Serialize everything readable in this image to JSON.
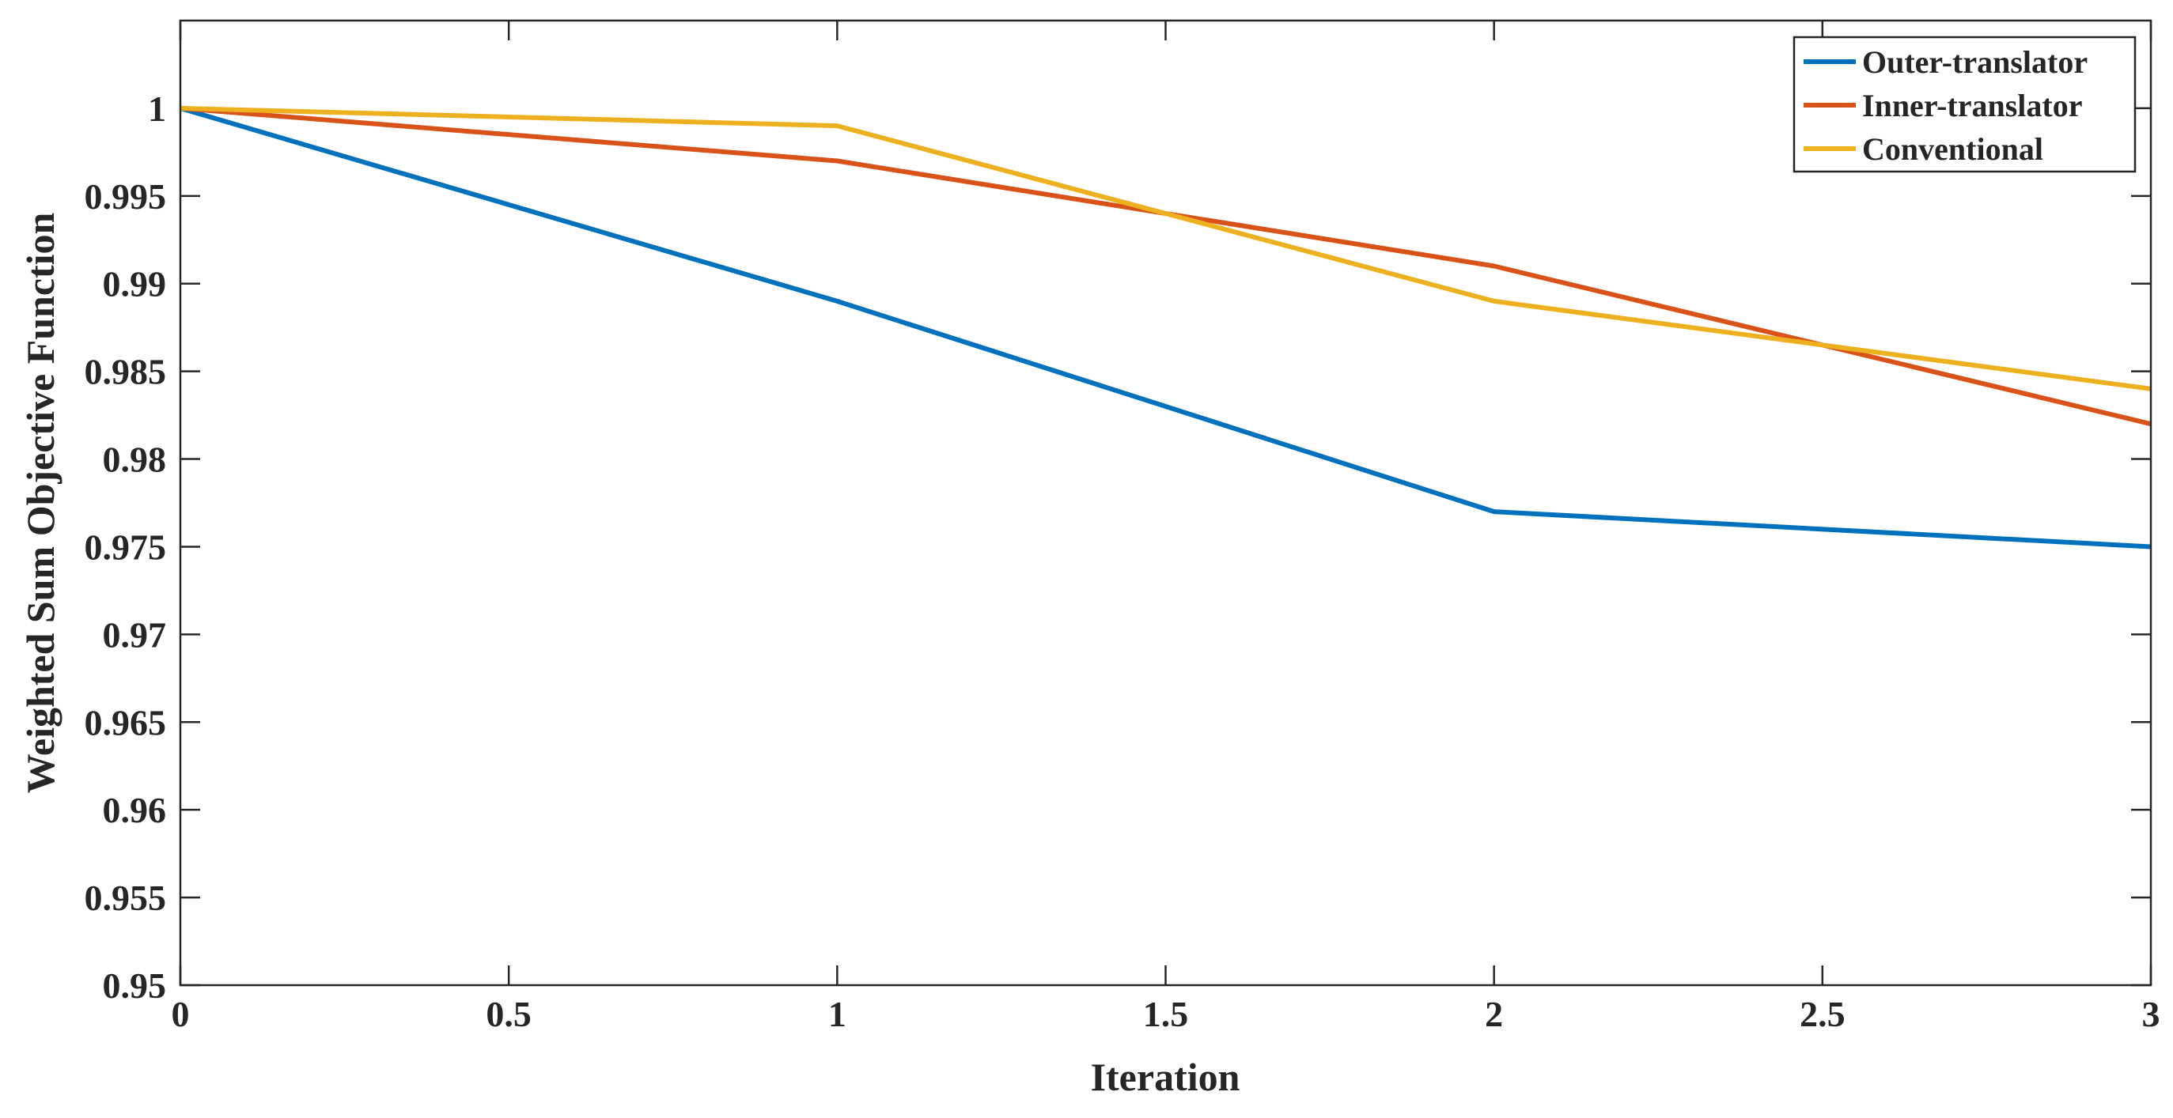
{
  "chart_data": {
    "type": "line",
    "xlabel": "Iteration",
    "ylabel": "Weighted Sum Objective Function",
    "xlim": [
      0,
      3
    ],
    "ylim": [
      0.95,
      1.005
    ],
    "x_ticks": [
      0,
      0.5,
      1,
      1.5,
      2,
      2.5,
      3
    ],
    "x_tick_labels": [
      "0",
      "0.5",
      "1",
      "1.5",
      "2",
      "2.5",
      "3"
    ],
    "y_ticks": [
      0.95,
      0.955,
      0.96,
      0.965,
      0.97,
      0.975,
      0.98,
      0.985,
      0.99,
      0.995,
      1
    ],
    "y_tick_labels": [
      "0.95",
      "0.955",
      "0.96",
      "0.965",
      "0.97",
      "0.975",
      "0.98",
      "0.985",
      "0.99",
      "0.995",
      "1"
    ],
    "grid": false,
    "legend_position": "top-right",
    "x": [
      0,
      1,
      2,
      3
    ],
    "series": [
      {
        "name": "Outer-translator",
        "color": "#0072BD",
        "values": [
          1.0,
          0.989,
          0.977,
          0.975
        ]
      },
      {
        "name": "Inner-translator",
        "color": "#D95319",
        "values": [
          1.0,
          0.997,
          0.991,
          0.982
        ]
      },
      {
        "name": "Conventional",
        "color": "#EDB120",
        "values": [
          1.0,
          0.999,
          0.989,
          0.984
        ]
      }
    ]
  }
}
